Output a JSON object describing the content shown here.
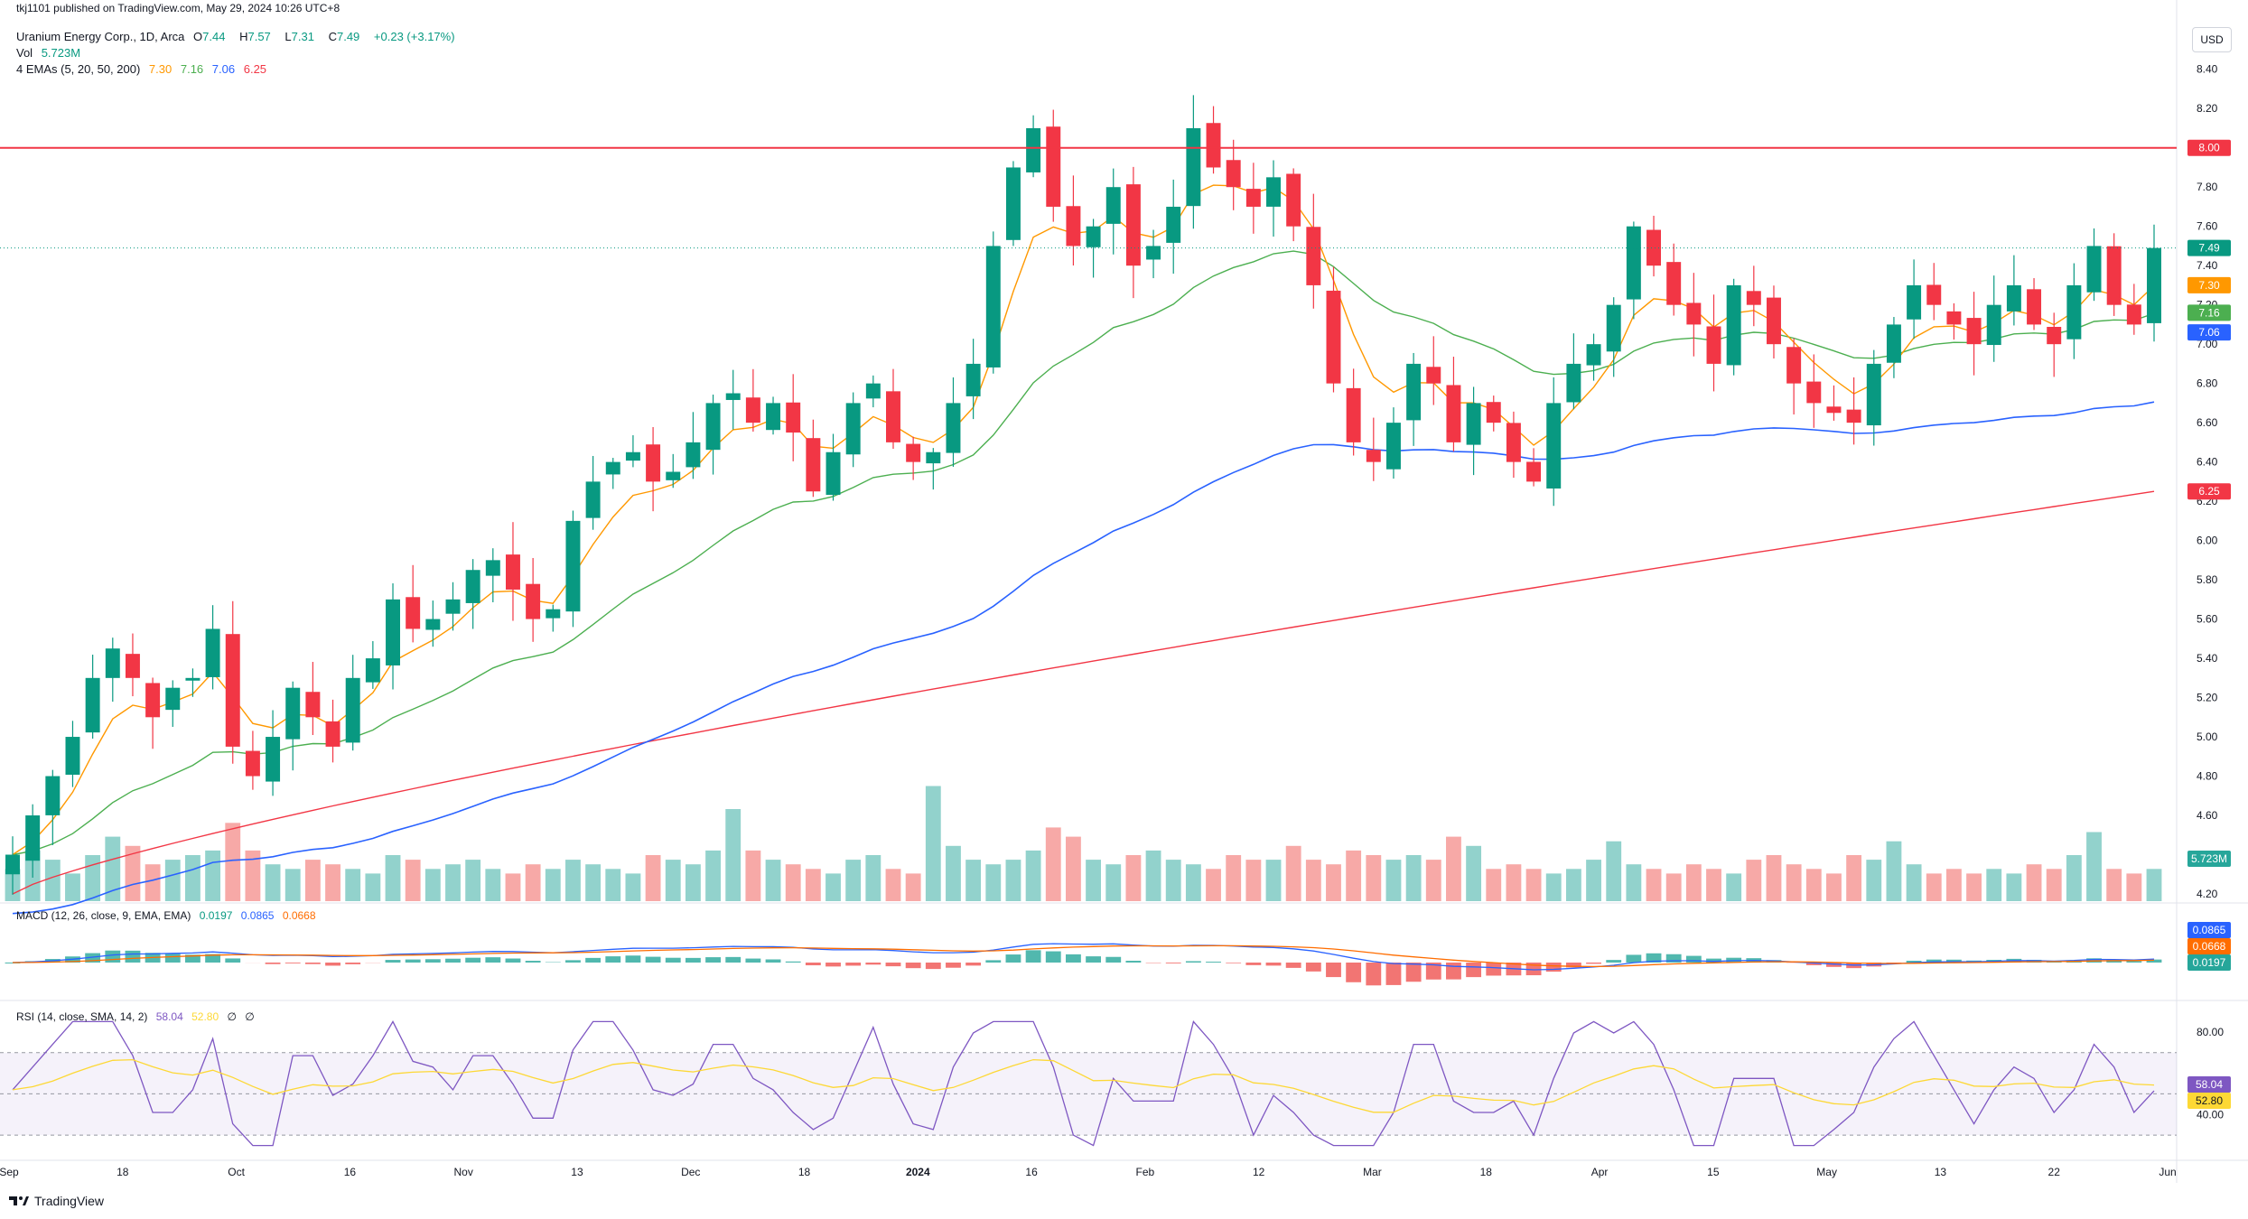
{
  "header": {
    "published": "tkj1101 published on TradingView.com, May 29, 2024 10:26 UTC+8",
    "symbol": "Uranium Energy Corp., 1D, Arca",
    "ohlc": {
      "o_label": "O",
      "o": "7.44",
      "h_label": "H",
      "h": "7.57",
      "l_label": "L",
      "l": "7.31",
      "c_label": "C",
      "c": "7.49",
      "chg": "+0.23 (+3.17%)"
    },
    "vol_label": "Vol",
    "vol_value": "5.723M",
    "ema_label": "4 EMAs (5, 20, 50, 200)",
    "ema_values": [
      "7.30",
      "7.16",
      "7.06",
      "6.25"
    ]
  },
  "currency_button": "USD",
  "footer": {
    "brand": "TradingView"
  },
  "colors": {
    "up": "#089981",
    "down": "#f23645",
    "ema5": "#ff9800",
    "ema20": "#4caf50",
    "ema50": "#2962ff",
    "ema200": "#f23645",
    "rsi": "#7e57c2",
    "rsi_ma": "#fdd835",
    "macd": "#2962ff",
    "signal": "#ff6d00"
  },
  "chart_data": [
    {
      "type": "candlestick",
      "title": "Uranium Energy Corp., 1D, Arca",
      "ylim": [
        4.2,
        8.5
      ],
      "y_ticks": [
        "8.40",
        "8.20",
        "8.00",
        "7.80",
        "7.60",
        "7.40",
        "7.20",
        "7.00",
        "6.80",
        "6.60",
        "6.40",
        "6.20",
        "6.00",
        "5.80",
        "5.60",
        "5.40",
        "5.20",
        "5.00",
        "4.80",
        "4.60",
        "4.40",
        "4.20"
      ],
      "x_ticks": [
        "Sep",
        "18",
        "Oct",
        "16",
        "Nov",
        "13",
        "Dec",
        "18",
        "2024",
        "16",
        "Feb",
        "12",
        "Mar",
        "18",
        "Apr",
        "15",
        "May",
        "13",
        "22",
        "Jun"
      ],
      "horizontal_line": {
        "value": 8.0,
        "label": "8.00"
      },
      "price_labels": {
        "last": "7.49",
        "ema5": "7.30",
        "ema20": "7.16",
        "ema50": "7.06",
        "ema200": "6.25",
        "volume": "5.723M"
      },
      "ema200_endpoints": [
        {
          "date": "2023-09",
          "value": 4.2
        },
        {
          "date": "2024-05-28",
          "value": 6.25
        }
      ],
      "close_series_approx": [
        4.4,
        4.6,
        4.8,
        5.0,
        5.3,
        5.45,
        5.3,
        5.1,
        5.25,
        5.3,
        5.55,
        4.95,
        4.8,
        5.0,
        5.25,
        5.1,
        4.95,
        5.3,
        5.4,
        5.7,
        5.55,
        5.6,
        5.7,
        5.85,
        5.9,
        5.75,
        5.6,
        5.65,
        6.1,
        6.3,
        6.4,
        6.45,
        6.3,
        6.35,
        6.5,
        6.7,
        6.75,
        6.6,
        6.7,
        6.55,
        6.25,
        6.45,
        6.7,
        6.8,
        6.5,
        6.4,
        6.45,
        6.7,
        6.9,
        7.5,
        7.9,
        8.1,
        7.7,
        7.5,
        7.6,
        7.8,
        7.4,
        7.5,
        7.7,
        8.1,
        7.9,
        7.8,
        7.7,
        7.85,
        7.6,
        7.3,
        6.8,
        6.5,
        6.4,
        6.6,
        6.9,
        6.8,
        6.5,
        6.7,
        6.6,
        6.4,
        6.3,
        6.7,
        6.9,
        7.0,
        7.2,
        7.6,
        7.4,
        7.2,
        7.1,
        6.9,
        7.3,
        7.2,
        7.0,
        6.8,
        6.7,
        6.65,
        6.6,
        6.9,
        7.1,
        7.3,
        7.2,
        7.1,
        7.0,
        7.2,
        7.3,
        7.1,
        7.0,
        7.3,
        7.5,
        7.2,
        7.1,
        7.49
      ]
    },
    {
      "type": "bar",
      "title": "Vol",
      "values_relative": [
        0.35,
        0.55,
        0.45,
        0.3,
        0.5,
        0.7,
        0.6,
        0.4,
        0.45,
        0.5,
        0.55,
        0.85,
        0.55,
        0.4,
        0.35,
        0.45,
        0.4,
        0.35,
        0.3,
        0.5,
        0.45,
        0.35,
        0.4,
        0.45,
        0.35,
        0.3,
        0.4,
        0.35,
        0.45,
        0.4,
        0.35,
        0.3,
        0.5,
        0.45,
        0.4,
        0.55,
        1.0,
        0.55,
        0.45,
        0.4,
        0.35,
        0.3,
        0.45,
        0.5,
        0.35,
        0.3,
        1.25,
        0.6,
        0.45,
        0.4,
        0.45,
        0.55,
        0.8,
        0.7,
        0.45,
        0.4,
        0.5,
        0.55,
        0.45,
        0.4,
        0.35,
        0.5,
        0.45,
        0.45,
        0.6,
        0.45,
        0.4,
        0.55,
        0.5,
        0.45,
        0.5,
        0.45,
        0.7,
        0.6,
        0.35,
        0.4,
        0.35,
        0.3,
        0.35,
        0.45,
        0.65,
        0.4,
        0.35,
        0.3,
        0.4,
        0.35,
        0.3,
        0.45,
        0.5,
        0.4,
        0.35,
        0.3,
        0.5,
        0.45,
        0.65,
        0.4,
        0.3,
        0.35,
        0.3,
        0.35,
        0.3,
        0.4,
        0.35,
        0.5,
        0.75,
        0.35,
        0.3,
        0.35
      ],
      "last_label": "5.723M"
    },
    {
      "type": "line",
      "title": "MACD (12, 26, close, 9, EMA, EMA)",
      "series": [
        {
          "name": "histogram",
          "value": "0.0197"
        },
        {
          "name": "MACD",
          "value": "0.0865"
        },
        {
          "name": "signal",
          "value": "0.0668"
        }
      ],
      "labels": [
        "0.0865",
        "0.0668",
        "0.0197"
      ]
    },
    {
      "type": "line",
      "title": "RSI (14, close, SMA, 14, 2)",
      "legend_values": [
        "58.04",
        "52.80",
        "∅",
        "∅"
      ],
      "ylim": [
        20,
        90
      ],
      "y_ticks": [
        "80.00",
        "40.00"
      ],
      "bands": [
        70,
        50,
        30
      ],
      "labels": [
        "58.04",
        "52.80"
      ]
    }
  ]
}
